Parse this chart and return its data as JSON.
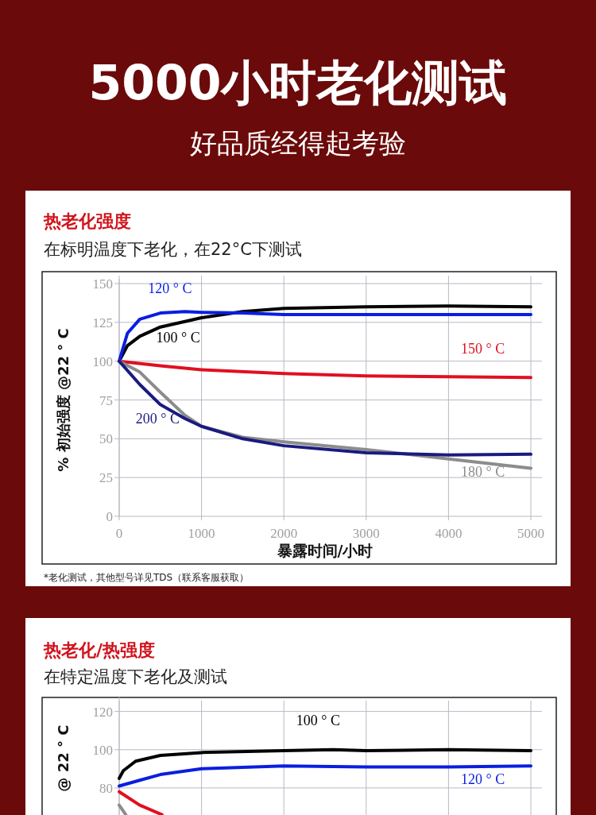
{
  "chart_data": [
    {
      "type": "other",
      "title": "5000小时老化测试",
      "subtitle": "好品质经得起考验"
    },
    {
      "type": "line",
      "title": "热老化强度",
      "subtitle": "在标明温度下老化，在22°C下测试",
      "xlabel": "暴露时间/小时",
      "ylabel": "% 初始强度  @22 ° C",
      "xlim": [
        0,
        5000
      ],
      "xticks": [
        0,
        1000,
        2000,
        3000,
        4000,
        5000
      ],
      "ylim": [
        0,
        150
      ],
      "yticks": [
        0,
        25,
        50,
        75,
        100,
        125,
        150
      ],
      "grid": true,
      "annotations": [
        "*老化测试，其他型号详见TDS（联系客服获取）"
      ],
      "series": [
        {
          "name": "100 ° C",
          "color": "#000000",
          "x": [
            0,
            100,
            250,
            500,
            1000,
            1500,
            2000,
            3000,
            4000,
            5000
          ],
          "values": [
            100,
            110,
            116,
            122,
            128,
            132,
            134,
            135,
            135.5,
            135
          ]
        },
        {
          "name": "120 ° C",
          "color": "#0a1ee0",
          "x": [
            0,
            100,
            250,
            500,
            800,
            1000,
            1500,
            2000,
            3000,
            4000,
            5000
          ],
          "values": [
            100,
            118,
            127,
            131,
            132,
            131.5,
            131,
            130,
            130,
            130,
            130
          ]
        },
        {
          "name": "150 ° C",
          "color": "#e01020",
          "x": [
            0,
            500,
            1000,
            2000,
            3000,
            4000,
            5000
          ],
          "values": [
            100,
            97,
            94.5,
            92,
            90.5,
            90,
            89.5
          ]
        },
        {
          "name": "180 ° C",
          "color": "#8c8c8c",
          "x": [
            0,
            250,
            500,
            800,
            1000,
            1500,
            2000,
            3000,
            4000,
            5000
          ],
          "values": [
            100,
            93,
            80,
            65,
            58,
            51,
            48,
            43,
            37,
            31
          ]
        },
        {
          "name": "200 ° C",
          "color": "#1a1a80",
          "x": [
            0,
            250,
            500,
            800,
            1000,
            1500,
            2000,
            3000,
            4000,
            5000
          ],
          "values": [
            100,
            85,
            72,
            63,
            58,
            50,
            45.5,
            41,
            39.5,
            40
          ]
        }
      ]
    },
    {
      "type": "line",
      "title": "热老化/热强度",
      "subtitle": "在特定温度下老化及测试",
      "ylabel": "@ 22 ° C",
      "xlim": [
        0,
        5000
      ],
      "xticks": [
        {
          "value": 0,
          "label": null
        },
        {
          "value": 1000,
          "label": null
        },
        {
          "value": 2000,
          "label": null
        },
        {
          "value": 3000,
          "label": null
        },
        {
          "value": 4000,
          "label": null
        },
        {
          "value": 5000,
          "label": null
        }
      ],
      "ylim": [
        66,
        125
      ],
      "yticks": [
        80,
        100,
        120
      ],
      "tick_labels": "y",
      "grid": true,
      "series": [
        {
          "name": "100 ° C",
          "color": "#000000",
          "x": [
            0,
            50,
            200,
            500,
            1000,
            2000,
            2600,
            3000,
            4000,
            5000
          ],
          "values": [
            85,
            89,
            94,
            97,
            98.5,
            99.5,
            100,
            99.5,
            100,
            99.5
          ]
        },
        {
          "name": "120 ° C",
          "color": "#0a1ee0",
          "x": [
            0,
            250,
            500,
            1000,
            2000,
            3000,
            4000,
            5000
          ],
          "values": [
            81,
            84,
            87,
            90,
            91.5,
            91,
            91,
            91.5
          ]
        },
        {
          "color": "#e01020",
          "x": [
            0,
            250,
            520
          ],
          "values": [
            78,
            71,
            66
          ]
        },
        {
          "color": "#8c8c8c",
          "x": [
            0,
            80
          ],
          "values": [
            71,
            66
          ]
        }
      ]
    }
  ]
}
